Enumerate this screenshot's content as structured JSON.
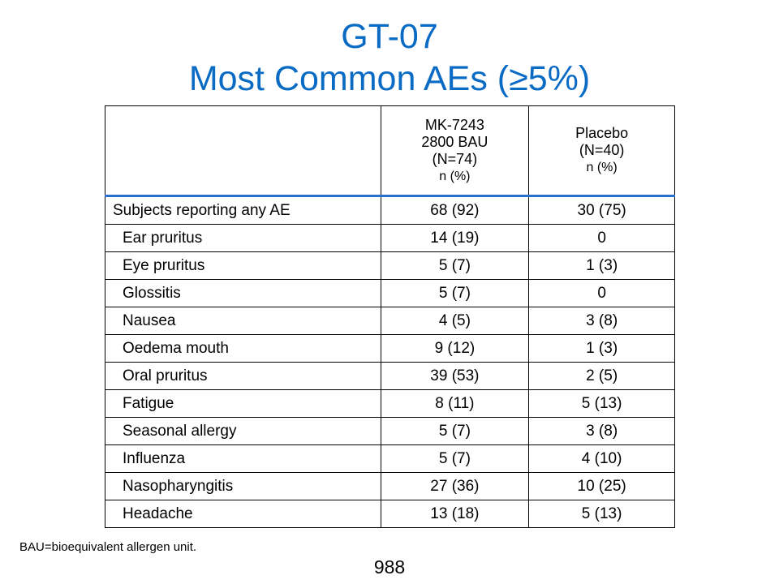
{
  "title": {
    "line1": "GT-07",
    "line2": "Most Common AEs (≥5%)"
  },
  "table": {
    "header": {
      "col1": "",
      "col2": [
        "MK-7243",
        "2800 BAU",
        "(N=74)",
        "n (%)"
      ],
      "col3": [
        "Placebo",
        "(N=40)",
        "n (%)"
      ]
    },
    "rows": [
      {
        "label": "Subjects reporting any AE",
        "mk": "68 (92)",
        "placebo": "30 (75)"
      },
      {
        "label": "Ear pruritus",
        "mk": "14 (19)",
        "placebo": "0"
      },
      {
        "label": "Eye pruritus",
        "mk": "5 (7)",
        "placebo": "1 (3)"
      },
      {
        "label": "Glossitis",
        "mk": "5 (7)",
        "placebo": "0"
      },
      {
        "label": "Nausea",
        "mk": "4 (5)",
        "placebo": "3 (8)"
      },
      {
        "label": "Oedema mouth",
        "mk": "9 (12)",
        "placebo": "1 (3)"
      },
      {
        "label": "Oral pruritus",
        "mk": "39 (53)",
        "placebo": "2 (5)"
      },
      {
        "label": "Fatigue",
        "mk": "8 (11)",
        "placebo": "5 (13)"
      },
      {
        "label": "Seasonal allergy",
        "mk": "5 (7)",
        "placebo": "3 (8)"
      },
      {
        "label": "Influenza",
        "mk": "5 (7)",
        "placebo": "4 (10)"
      },
      {
        "label": "Nasopharyngitis",
        "mk": "27 (36)",
        "placebo": "10 (25)"
      },
      {
        "label": "Headache",
        "mk": "13 (18)",
        "placebo": "5 (13)"
      }
    ]
  },
  "footnote": "BAU=bioequivalent allergen unit.",
  "page_number": "988",
  "colors": {
    "title": "#0a6bc4",
    "header_rule": "#2a6fc9"
  }
}
